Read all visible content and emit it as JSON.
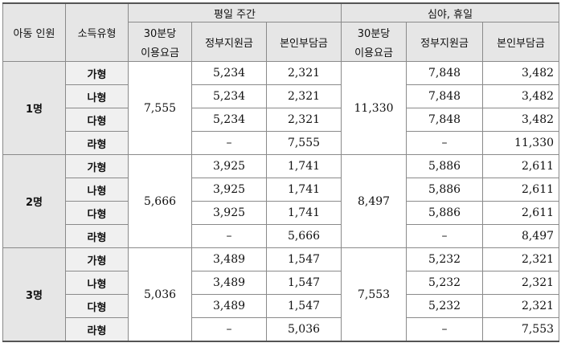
{
  "header": {
    "child_count": "아동 인원",
    "income_type": "소득유형",
    "weekday": "평일 주간",
    "night": "심야, 휴일",
    "fee_line1": "30분당",
    "fee_line2": "이용요금",
    "gov": "정부지원금",
    "self": "본인부담금"
  },
  "groups": [
    {
      "label": "1명",
      "weekday_fee": "7,555",
      "night_fee": "11,330",
      "rows": [
        {
          "type": "가형",
          "wd_gov": "5,234",
          "wd_self": "2,321",
          "nt_gov": "7,848",
          "nt_self": "3,482"
        },
        {
          "type": "나형",
          "wd_gov": "5,234",
          "wd_self": "2,321",
          "nt_gov": "7,848",
          "nt_self": "3,482"
        },
        {
          "type": "다형",
          "wd_gov": "5,234",
          "wd_self": "2,321",
          "nt_gov": "7,848",
          "nt_self": "3,482"
        },
        {
          "type": "라형",
          "wd_gov": "–",
          "wd_self": "7,555",
          "nt_gov": "–",
          "nt_self": "11,330"
        }
      ]
    },
    {
      "label": "2명",
      "weekday_fee": "5,666",
      "night_fee": "8,497",
      "rows": [
        {
          "type": "가형",
          "wd_gov": "3,925",
          "wd_self": "1,741",
          "nt_gov": "5,886",
          "nt_self": "2,611"
        },
        {
          "type": "나형",
          "wd_gov": "3,925",
          "wd_self": "1,741",
          "nt_gov": "5,886",
          "nt_self": "2,611"
        },
        {
          "type": "다형",
          "wd_gov": "3,925",
          "wd_self": "1,741",
          "nt_gov": "5,886",
          "nt_self": "2,611"
        },
        {
          "type": "라형",
          "wd_gov": "–",
          "wd_self": "5,666",
          "nt_gov": "–",
          "nt_self": "8,497"
        }
      ]
    },
    {
      "label": "3명",
      "weekday_fee": "5,036",
      "night_fee": "7,553",
      "rows": [
        {
          "type": "가형",
          "wd_gov": "3,489",
          "wd_self": "1,547",
          "nt_gov": "5,232",
          "nt_self": "2,321"
        },
        {
          "type": "나형",
          "wd_gov": "3,489",
          "wd_self": "1,547",
          "nt_gov": "5,232",
          "nt_self": "2,321"
        },
        {
          "type": "다형",
          "wd_gov": "3,489",
          "wd_self": "1,547",
          "nt_gov": "5,232",
          "nt_self": "2,321"
        },
        {
          "type": "라형",
          "wd_gov": "–",
          "wd_self": "5,036",
          "nt_gov": "–",
          "nt_self": "7,553"
        }
      ]
    }
  ]
}
